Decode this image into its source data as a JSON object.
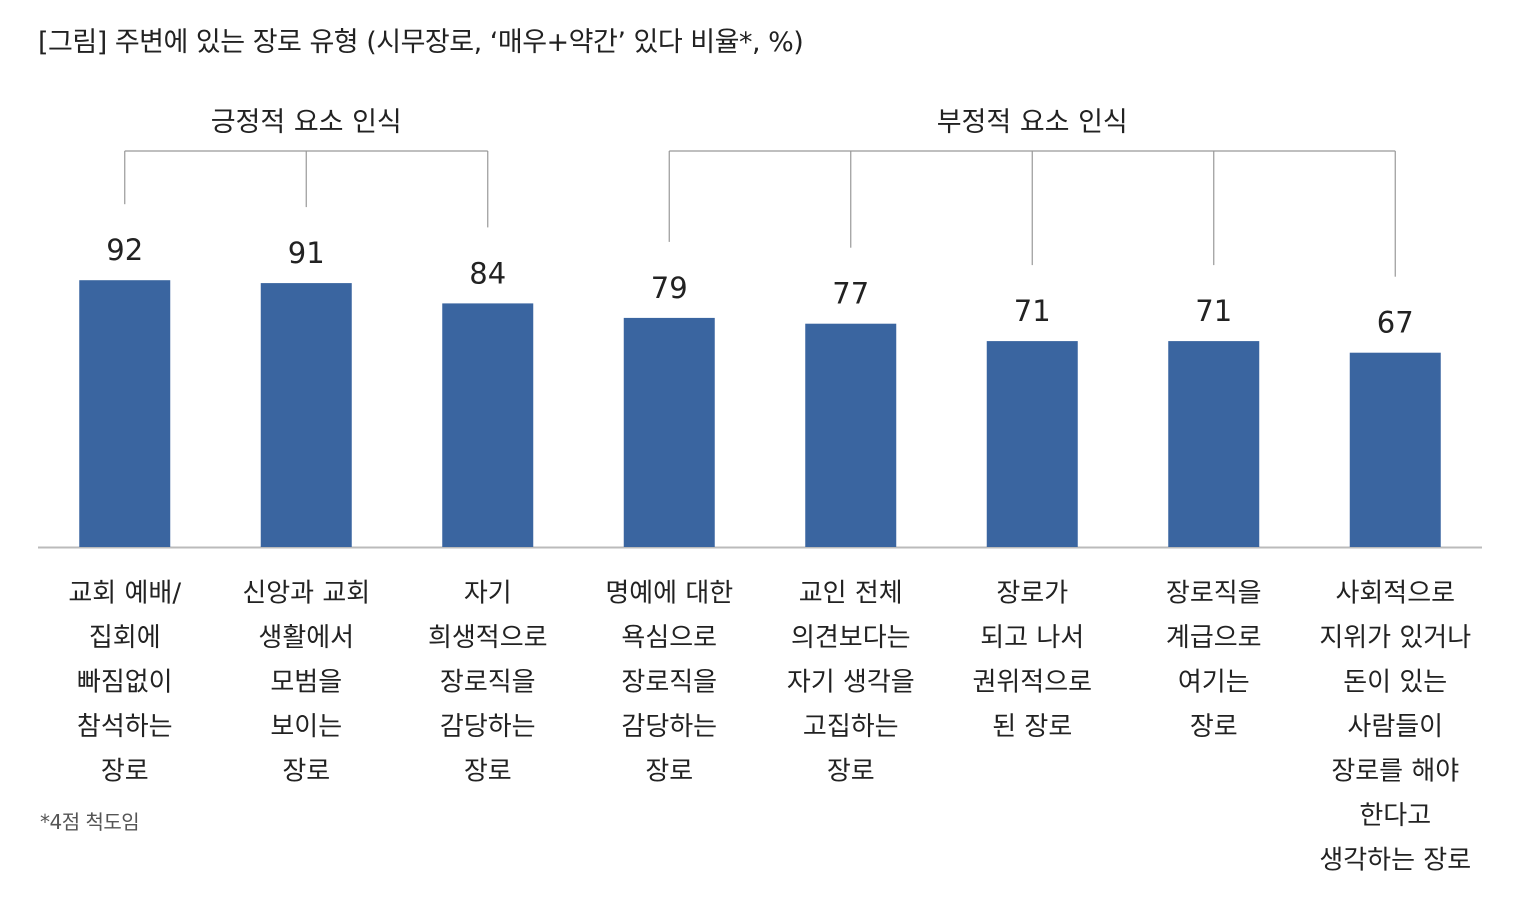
{
  "title": "[그림] 주변에 있는 장로 유형 (시무장로, ‘매우+약간’ 있다 비율*, %)",
  "footnote": "*4점 척도임",
  "colors": {
    "bar": "#3A65A0",
    "axis": "#BBBBBB",
    "bracket": "#999999"
  },
  "chart_data": {
    "type": "bar",
    "title": "[그림] 주변에 있는 장로 유형 (시무장로, ‘매우+약간’ 있다 비율*, %)",
    "categories": [
      [
        "교회 예배/",
        "집회에",
        "빠짐없이",
        "참석하는",
        "장로"
      ],
      [
        "신앙과 교회",
        "생활에서",
        "모범을",
        "보이는",
        "장로"
      ],
      [
        "자기",
        "희생적으로",
        "장로직을",
        "감당하는",
        "장로"
      ],
      [
        "명예에 대한",
        "욕심으로",
        "장로직을",
        "감당하는",
        "장로"
      ],
      [
        "교인 전체",
        "의견보다는",
        "자기 생각을",
        "고집하는",
        "장로"
      ],
      [
        "장로가",
        "되고 나서",
        "권위적으로",
        "된 장로"
      ],
      [
        "장로직을",
        "계급으로",
        "여기는",
        "장로"
      ],
      [
        "사회적으로",
        "지위가 있거나",
        "돈이 있는",
        "사람들이",
        "장로를 해야",
        "한다고",
        "생각하는 장로"
      ]
    ],
    "values": [
      92,
      91,
      84,
      79,
      77,
      71,
      71,
      67
    ],
    "groups": [
      {
        "label": "긍정적 요소 인식",
        "start": 0,
        "end": 2
      },
      {
        "label": "부정적 요소 인식",
        "start": 3,
        "end": 7
      }
    ],
    "ylim": [
      0,
      100
    ],
    "grid": false,
    "data_labels": true
  }
}
